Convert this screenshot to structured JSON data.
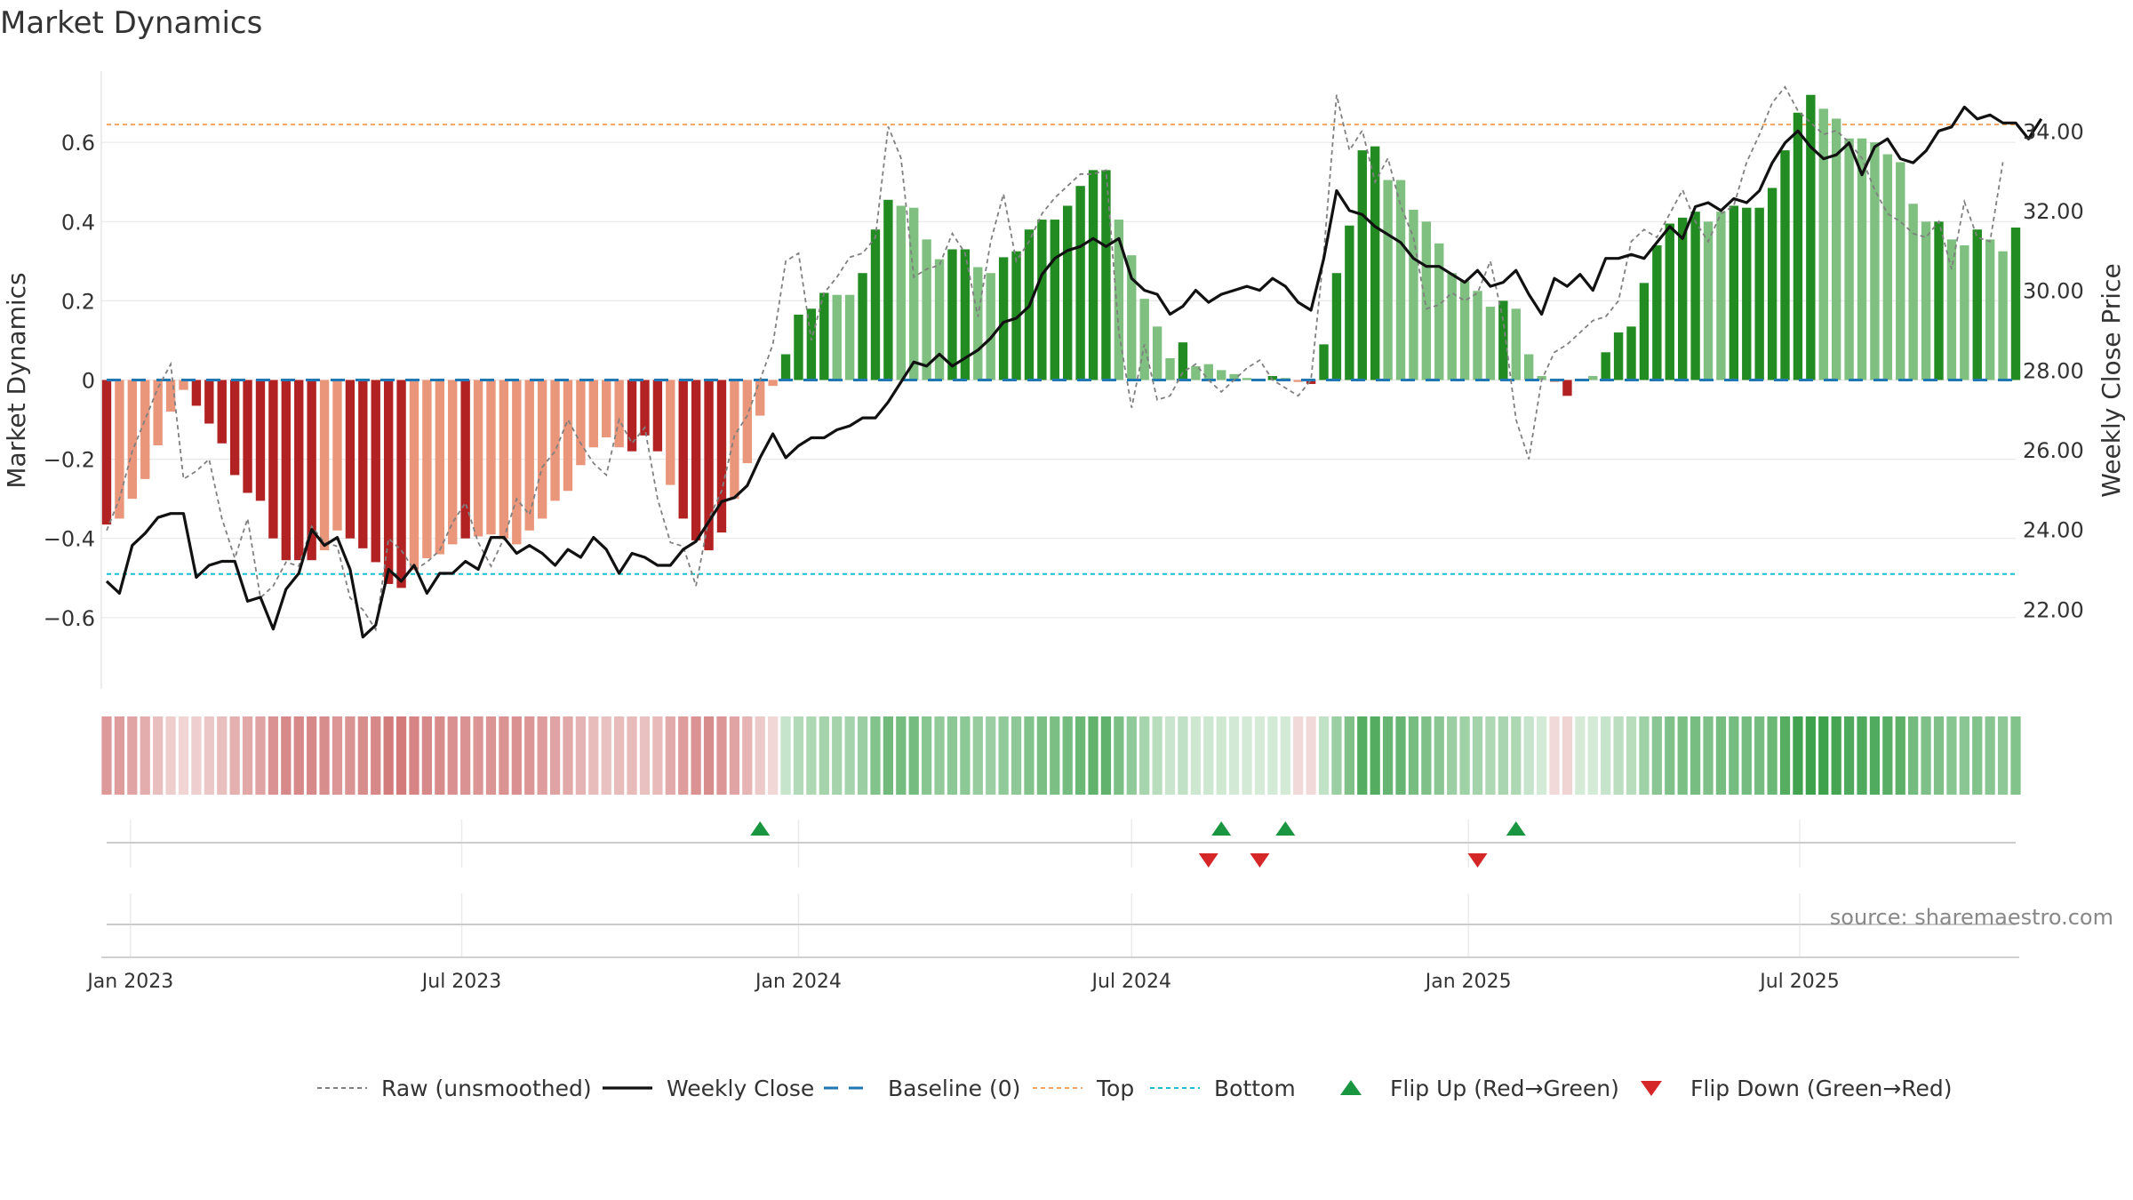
{
  "page_title": "Market Dynamics",
  "source_text": "source: sharemaestro.com",
  "colors": {
    "dark_green": "#228b22",
    "light_green": "#7fbf7f",
    "dark_red": "#b22222",
    "light_red": "#e9967a",
    "close_line": "#111111",
    "raw_line": "#808080",
    "baseline": "#1f77b4",
    "top_line": "#f4a460",
    "bottom_line": "#17becf",
    "flip_up": "#1a9641",
    "flip_down": "#d62728",
    "grid": "#e8e8e8"
  },
  "chart_data": {
    "type": "bar",
    "title": "Market Dynamics",
    "ylabel": "Market Dynamics",
    "y2label": "Weekly Close Price",
    "x_tick_labels": [
      "Jan 2023",
      "Jul 2023",
      "Jan 2024",
      "Jul 2024",
      "Jan 2025",
      "Jul 2025"
    ],
    "x_tick_dates": [
      "2023-01-01",
      "2023-07-01",
      "2024-01-01",
      "2024-07-01",
      "2025-01-01",
      "2025-07-01"
    ],
    "y_ticks": [
      "−0.6",
      "−0.4",
      "−0.2",
      "0",
      "0.2",
      "0.4",
      "0.6"
    ],
    "y_tick_values": [
      -0.6,
      -0.4,
      -0.2,
      0,
      0.2,
      0.4,
      0.6
    ],
    "y2_ticks": [
      "22.00",
      "24.00",
      "26.00",
      "28.00",
      "30.00",
      "32.00",
      "34.00"
    ],
    "y2_tick_values": [
      22,
      24,
      26,
      28,
      30,
      32,
      34
    ],
    "ylim": [
      -0.78,
      0.78
    ],
    "y2lim": [
      20.0,
      35.5
    ],
    "top_level": 0.645,
    "bottom_level": -0.49,
    "baseline_level": 0,
    "first_week": "2022-12-19",
    "last_week": "2025-10-27",
    "smoothed_values": [
      -0.365,
      -0.35,
      -0.3,
      -0.25,
      -0.165,
      -0.08,
      -0.025,
      -0.065,
      -0.11,
      -0.16,
      -0.24,
      -0.285,
      -0.305,
      -0.4,
      -0.455,
      -0.455,
      -0.455,
      -0.43,
      -0.38,
      -0.4,
      -0.425,
      -0.46,
      -0.515,
      -0.525,
      -0.48,
      -0.45,
      -0.44,
      -0.415,
      -0.4,
      -0.395,
      -0.39,
      -0.4,
      -0.415,
      -0.38,
      -0.35,
      -0.305,
      -0.28,
      -0.215,
      -0.17,
      -0.145,
      -0.17,
      -0.18,
      -0.14,
      -0.18,
      -0.265,
      -0.35,
      -0.405,
      -0.43,
      -0.385,
      -0.3,
      -0.21,
      -0.09,
      -0.015,
      0.065,
      0.165,
      0.18,
      0.22,
      0.215,
      0.215,
      0.27,
      0.38,
      0.455,
      0.44,
      0.435,
      0.355,
      0.305,
      0.33,
      0.33,
      0.285,
      0.27,
      0.31,
      0.325,
      0.38,
      0.405,
      0.405,
      0.44,
      0.49,
      0.53,
      0.53,
      0.405,
      0.315,
      0.205,
      0.135,
      0.055,
      0.095,
      0.035,
      0.04,
      0.025,
      0.015,
      0.005,
      0.0,
      0.01,
      0.005,
      -0.005,
      -0.01,
      0.09,
      0.27,
      0.39,
      0.58,
      0.59,
      0.505,
      0.505,
      0.43,
      0.4,
      0.345,
      0.27,
      0.25,
      0.225,
      0.185,
      0.2,
      0.18,
      0.065,
      0.01,
      -0.005,
      -0.04,
      0.0,
      0.01,
      0.07,
      0.12,
      0.135,
      0.245,
      0.34,
      0.395,
      0.41,
      0.425,
      0.4,
      0.425,
      0.44,
      0.435,
      0.435,
      0.485,
      0.58,
      0.675,
      0.72,
      0.685,
      0.66,
      0.61,
      0.61,
      0.6,
      0.57,
      0.55,
      0.445,
      0.4,
      0.4,
      0.355,
      0.34,
      0.38,
      0.355,
      0.325,
      0.385
    ],
    "bar_shade": [
      "D",
      "L",
      "L",
      "L",
      "L",
      "L",
      "L",
      "D",
      "D",
      "D",
      "D",
      "D",
      "D",
      "D",
      "D",
      "D",
      "D",
      "L",
      "L",
      "D",
      "D",
      "D",
      "D",
      "D",
      "L",
      "L",
      "L",
      "L",
      "D",
      "L",
      "L",
      "L",
      "L",
      "L",
      "L",
      "L",
      "L",
      "L",
      "L",
      "L",
      "L",
      "D",
      "D",
      "D",
      "L",
      "D",
      "D",
      "D",
      "D",
      "L",
      "L",
      "L",
      "L",
      "D",
      "D",
      "D",
      "D",
      "L",
      "L",
      "D",
      "D",
      "D",
      "L",
      "L",
      "L",
      "L",
      "D",
      "D",
      "L",
      "L",
      "D",
      "D",
      "D",
      "D",
      "D",
      "D",
      "D",
      "D",
      "D",
      "L",
      "L",
      "L",
      "L",
      "L",
      "D",
      "L",
      "L",
      "L",
      "L",
      "L",
      "L",
      "D",
      "L",
      "L",
      "D",
      "D",
      "D",
      "D",
      "D",
      "D",
      "L",
      "L",
      "L",
      "L",
      "L",
      "L",
      "L",
      "L",
      "L",
      "D",
      "L",
      "L",
      "L",
      "L",
      "D",
      "L",
      "L",
      "D",
      "D",
      "D",
      "D",
      "D",
      "D",
      "D",
      "D",
      "L",
      "L",
      "D",
      "D",
      "D",
      "D",
      "D",
      "D",
      "D",
      "L",
      "L",
      "L",
      "L",
      "L",
      "L",
      "L",
      "L",
      "L",
      "D",
      "L",
      "L",
      "D",
      "L",
      "L",
      "D"
    ],
    "raw_values": [
      -0.38,
      -0.3,
      -0.18,
      -0.1,
      -0.02,
      0.04,
      -0.25,
      -0.23,
      -0.2,
      -0.35,
      -0.45,
      -0.35,
      -0.55,
      -0.52,
      -0.46,
      -0.47,
      -0.37,
      -0.41,
      -0.42,
      -0.55,
      -0.58,
      -0.63,
      -0.4,
      -0.43,
      -0.48,
      -0.46,
      -0.43,
      -0.36,
      -0.31,
      -0.41,
      -0.47,
      -0.4,
      -0.3,
      -0.34,
      -0.22,
      -0.18,
      -0.1,
      -0.16,
      -0.21,
      -0.24,
      -0.1,
      -0.16,
      -0.12,
      -0.3,
      -0.41,
      -0.42,
      -0.52,
      -0.35,
      -0.28,
      -0.14,
      -0.09,
      0.0,
      0.09,
      0.3,
      0.32,
      0.1,
      0.22,
      0.26,
      0.31,
      0.32,
      0.36,
      0.64,
      0.56,
      0.26,
      0.28,
      0.29,
      0.37,
      0.32,
      0.16,
      0.35,
      0.47,
      0.3,
      0.35,
      0.42,
      0.46,
      0.49,
      0.52,
      0.52,
      0.53,
      0.12,
      -0.07,
      0.09,
      -0.05,
      -0.04,
      0.02,
      0.04,
      0.0,
      -0.03,
      0.0,
      0.03,
      0.05,
      0.0,
      -0.02,
      -0.04,
      0.0,
      0.32,
      0.72,
      0.58,
      0.63,
      0.5,
      0.56,
      0.44,
      0.36,
      0.18,
      0.19,
      0.22,
      0.2,
      0.22,
      0.3,
      0.15,
      -0.1,
      -0.2,
      0.0,
      0.07,
      0.09,
      0.12,
      0.15,
      0.16,
      0.2,
      0.35,
      0.38,
      0.36,
      0.42,
      0.48,
      0.4,
      0.35,
      0.42,
      0.44,
      0.55,
      0.62,
      0.7,
      0.74,
      0.68,
      0.65,
      0.62,
      0.63,
      0.6,
      0.56,
      0.48,
      0.42,
      0.4,
      0.37,
      0.36,
      0.4,
      0.28,
      0.45,
      0.36,
      0.35,
      0.55
    ],
    "close_prices": [
      22.7,
      22.4,
      23.6,
      23.9,
      24.3,
      24.4,
      24.4,
      22.8,
      23.1,
      23.2,
      23.2,
      22.2,
      22.3,
      21.5,
      22.5,
      22.9,
      24.0,
      23.6,
      23.8,
      23.0,
      21.3,
      21.6,
      23.0,
      22.7,
      23.1,
      22.4,
      22.9,
      22.9,
      23.2,
      23.0,
      23.8,
      23.8,
      23.4,
      23.6,
      23.4,
      23.1,
      23.5,
      23.3,
      23.8,
      23.5,
      22.9,
      23.4,
      23.3,
      23.1,
      23.1,
      23.5,
      23.7,
      24.2,
      24.7,
      24.8,
      25.1,
      25.8,
      26.4,
      25.8,
      26.1,
      26.3,
      26.3,
      26.5,
      26.6,
      26.8,
      26.8,
      27.2,
      27.7,
      28.2,
      28.1,
      28.4,
      28.1,
      28.3,
      28.5,
      28.8,
      29.2,
      29.3,
      29.6,
      30.4,
      30.8,
      31.0,
      31.1,
      31.3,
      31.1,
      31.3,
      30.3,
      30.0,
      29.9,
      29.4,
      29.6,
      30.0,
      29.7,
      29.9,
      30.0,
      30.1,
      30.0,
      30.3,
      30.1,
      29.7,
      29.5,
      30.8,
      32.5,
      32.0,
      31.9,
      31.6,
      31.4,
      31.2,
      30.8,
      30.6,
      30.6,
      30.4,
      30.2,
      30.5,
      30.1,
      30.2,
      30.5,
      29.9,
      29.4,
      30.3,
      30.1,
      30.4,
      30.0,
      30.8,
      30.8,
      30.9,
      30.8,
      31.2,
      31.6,
      31.3,
      32.1,
      32.2,
      32.0,
      32.3,
      32.2,
      32.5,
      33.2,
      33.7,
      34.0,
      33.6,
      33.3,
      33.4,
      33.7,
      32.9,
      33.6,
      33.8,
      33.3,
      33.2,
      33.5,
      34.0,
      34.1,
      34.6,
      34.3,
      34.4,
      34.2,
      34.2,
      33.8,
      34.3
    ],
    "flip_up_dates": [
      "2023-12-11",
      "2024-08-19",
      "2024-09-23",
      "2025-01-27"
    ],
    "flip_down_dates": [
      "2024-08-12",
      "2024-09-09",
      "2025-01-06"
    ],
    "legend": [
      {
        "label": "Raw (unsmoothed)",
        "style": "dash-gray"
      },
      {
        "label": "Weekly Close",
        "style": "solid-black"
      },
      {
        "label": "Baseline (0)",
        "style": "dash-blue"
      },
      {
        "label": "Top",
        "style": "dot-orange"
      },
      {
        "label": "Bottom",
        "style": "dot-cyan"
      },
      {
        "label": "Flip Up (Red→Green)",
        "style": "triangle-up"
      },
      {
        "label": "Flip Down (Green→Red)",
        "style": "triangle-down"
      }
    ],
    "legend_placement": "bottom-center",
    "grid": true
  }
}
